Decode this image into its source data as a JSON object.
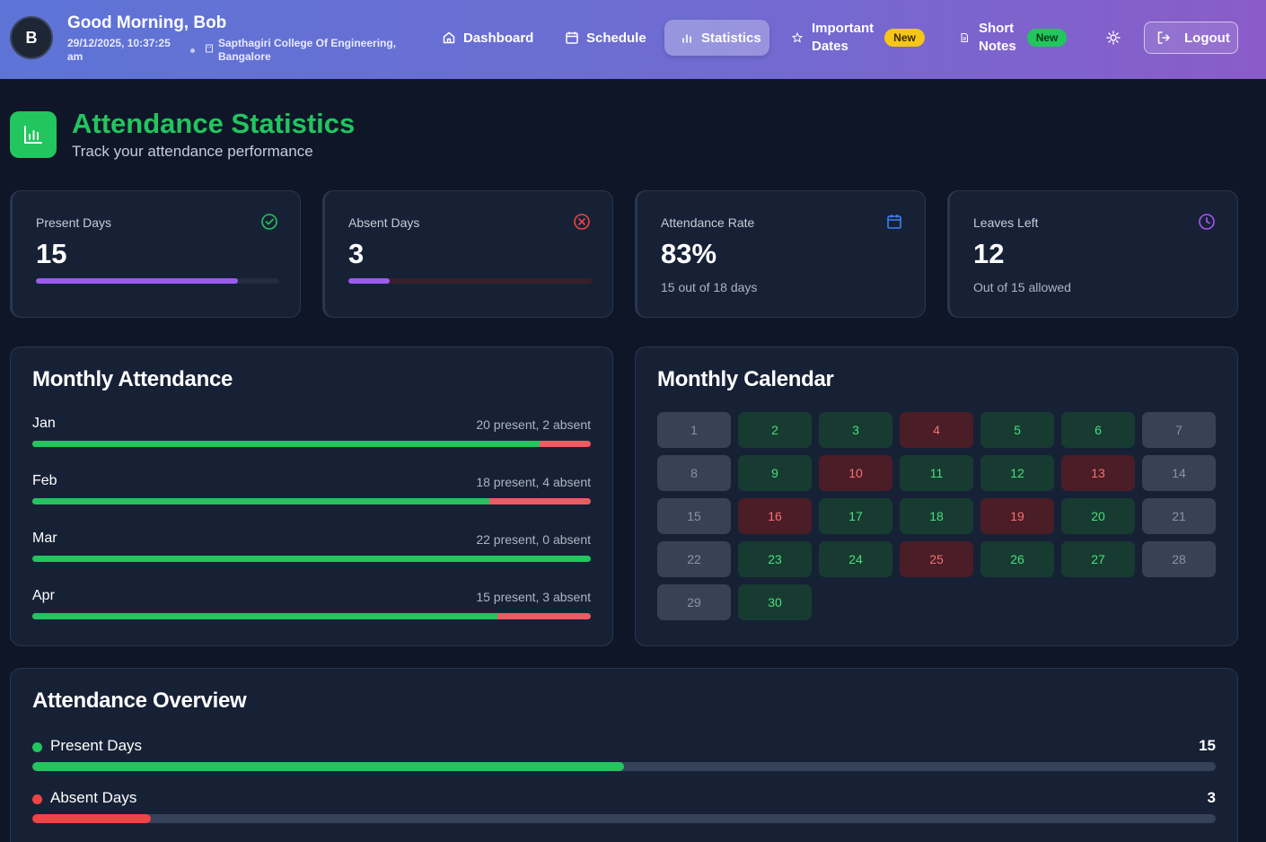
{
  "header": {
    "avatar_initial": "B",
    "greeting": "Good Morning, Bob",
    "datetime": "29/12/2025, 10:37:25 am",
    "college": "Sapthagiri College Of Engineering, Bangalore",
    "nav": {
      "dashboard": "Dashboard",
      "schedule": "Schedule",
      "statistics": "Statistics",
      "important_line1": "Important",
      "important_line2": "Dates",
      "important_badge": "New",
      "notes_line1": "Short",
      "notes_line2": "Notes",
      "notes_badge": "New"
    },
    "logout": "Logout"
  },
  "page": {
    "title": "Attendance Statistics",
    "subtitle": "Track your attendance performance"
  },
  "stats": {
    "present": {
      "label": "Present Days",
      "value": "15",
      "progress": 0.83
    },
    "absent": {
      "label": "Absent Days",
      "value": "3",
      "progress": 0.17
    },
    "rate": {
      "label": "Attendance Rate",
      "value": "83%",
      "sub": "15 out of 18 days"
    },
    "leaves": {
      "label": "Leaves Left",
      "value": "12",
      "sub": "Out of 15 allowed"
    }
  },
  "monthly": {
    "title": "Monthly Attendance",
    "months": [
      {
        "name": "Jan",
        "text": "20 present, 2 absent",
        "present": 20,
        "absent": 2
      },
      {
        "name": "Feb",
        "text": "18 present, 4 absent",
        "present": 18,
        "absent": 4
      },
      {
        "name": "Mar",
        "text": "22 present, 0 absent",
        "present": 22,
        "absent": 0
      },
      {
        "name": "Apr",
        "text": "15 present, 3 absent",
        "present": 15,
        "absent": 3
      }
    ]
  },
  "calendar": {
    "title": "Monthly Calendar",
    "days": [
      {
        "d": "1",
        "s": "holiday"
      },
      {
        "d": "2",
        "s": "present"
      },
      {
        "d": "3",
        "s": "present"
      },
      {
        "d": "4",
        "s": "absent"
      },
      {
        "d": "5",
        "s": "present"
      },
      {
        "d": "6",
        "s": "present"
      },
      {
        "d": "7",
        "s": "holiday"
      },
      {
        "d": "8",
        "s": "holiday"
      },
      {
        "d": "9",
        "s": "present"
      },
      {
        "d": "10",
        "s": "absent"
      },
      {
        "d": "11",
        "s": "present"
      },
      {
        "d": "12",
        "s": "present"
      },
      {
        "d": "13",
        "s": "absent"
      },
      {
        "d": "14",
        "s": "holiday"
      },
      {
        "d": "15",
        "s": "holiday"
      },
      {
        "d": "16",
        "s": "absent"
      },
      {
        "d": "17",
        "s": "present"
      },
      {
        "d": "18",
        "s": "present"
      },
      {
        "d": "19",
        "s": "absent"
      },
      {
        "d": "20",
        "s": "present"
      },
      {
        "d": "21",
        "s": "holiday"
      },
      {
        "d": "22",
        "s": "holiday"
      },
      {
        "d": "23",
        "s": "present"
      },
      {
        "d": "24",
        "s": "present"
      },
      {
        "d": "25",
        "s": "absent"
      },
      {
        "d": "26",
        "s": "present"
      },
      {
        "d": "27",
        "s": "present"
      },
      {
        "d": "28",
        "s": "holiday"
      },
      {
        "d": "29",
        "s": "holiday"
      },
      {
        "d": "30",
        "s": "present"
      }
    ]
  },
  "overview": {
    "title": "Attendance Overview",
    "present": {
      "label": "Present Days",
      "value": "15",
      "progress": 0.5
    },
    "absent": {
      "label": "Absent Days",
      "value": "3",
      "progress": 0.1
    }
  },
  "colors": {
    "present": "#22c55e",
    "absent": "#ef4444",
    "accent": "#9d5cf0"
  }
}
